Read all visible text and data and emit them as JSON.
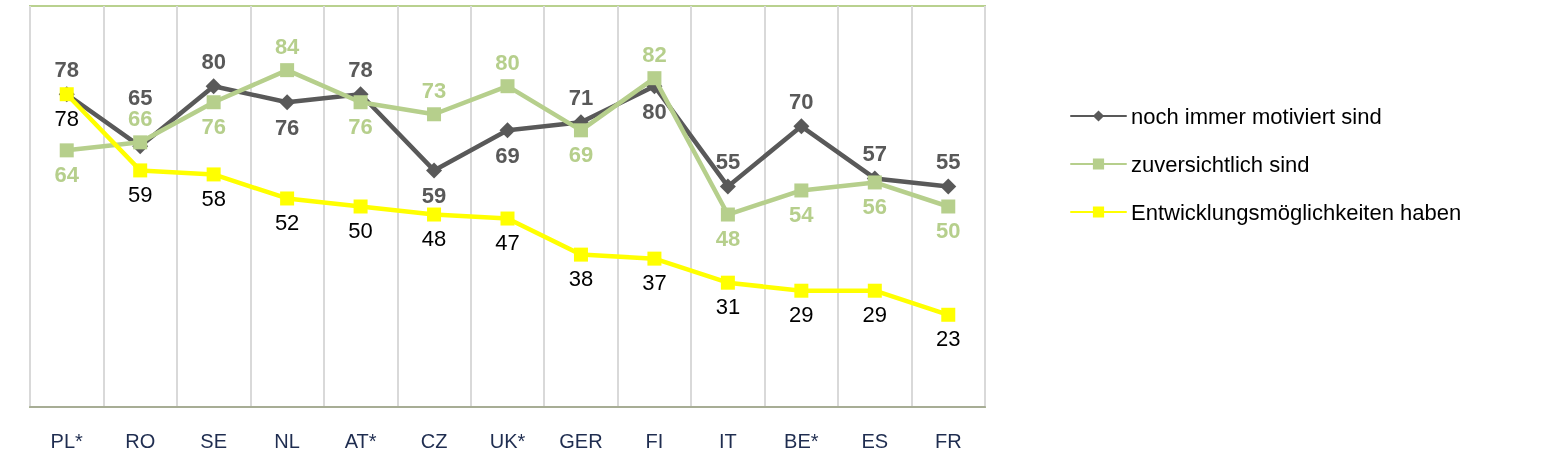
{
  "chart_data": {
    "type": "line",
    "categories": [
      "PL*",
      "RO",
      "SE",
      "NL",
      "AT*",
      "CZ",
      "UK*",
      "GER",
      "FI",
      "IT",
      "BE*",
      "ES",
      "FR"
    ],
    "series": [
      {
        "name": "noch immer motiviert sind",
        "color": "#595959",
        "marker": "diamond",
        "values": [
          78,
          65,
          80,
          76,
          78,
          59,
          69,
          71,
          80,
          55,
          70,
          57,
          55
        ]
      },
      {
        "name": "zuversichtlich sind",
        "color": "#b6cf8c",
        "marker": "square",
        "values": [
          64,
          66,
          76,
          84,
          76,
          73,
          80,
          69,
          82,
          48,
          54,
          56,
          50
        ]
      },
      {
        "name": "Entwicklungsmöglichkeiten haben",
        "color": "#ffff00",
        "marker": "square",
        "values": [
          78,
          59,
          58,
          52,
          50,
          48,
          47,
          38,
          37,
          31,
          29,
          29,
          23
        ]
      }
    ],
    "ylim": [
      0,
      100
    ],
    "tick_labels": "x",
    "grid": "x",
    "legend": "right",
    "data_labels": true,
    "line_style": "solid"
  }
}
